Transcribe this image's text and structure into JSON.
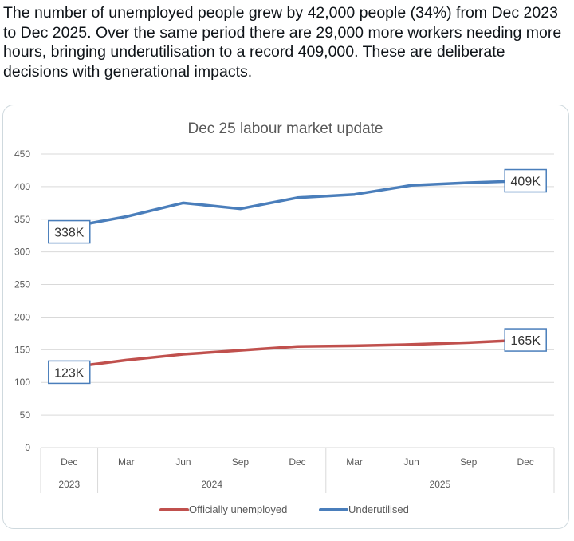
{
  "tweet": {
    "text": "The number of unemployed people grew by 42,000 people (34%) from Dec 2023 to Dec 2025. Over the same period there are 29,000 more workers needing more hours, bringing underutilisation to a record 409,000. These are deliberate decisions with generational impacts."
  },
  "chart_data": {
    "type": "line",
    "title": "Dec 25 labour market update",
    "categories": [
      "Dec",
      "Mar",
      "Jun",
      "Sep",
      "Dec",
      "Mar",
      "Jun",
      "Sep",
      "Dec"
    ],
    "years": [
      {
        "label": "2023",
        "span": 1
      },
      {
        "label": "2024",
        "span": 4
      },
      {
        "label": "2025",
        "span": 4
      }
    ],
    "ylim": [
      0,
      450
    ],
    "yticks": [
      0,
      50,
      100,
      150,
      200,
      250,
      300,
      350,
      400,
      450
    ],
    "grid": true,
    "legend": "bottom",
    "series": [
      {
        "name": "Officially unemployed",
        "color": "#c0504d",
        "values": [
          123,
          134,
          143,
          149,
          155,
          156,
          158,
          161,
          165
        ],
        "labels": {
          "0": "123K",
          "8": "165K"
        }
      },
      {
        "name": "Underutilised",
        "color": "#4a7ebb",
        "values": [
          338,
          354,
          375,
          366,
          383,
          388,
          402,
          406,
          409
        ],
        "labels": {
          "0": "338K",
          "8": "409K"
        }
      }
    ]
  }
}
